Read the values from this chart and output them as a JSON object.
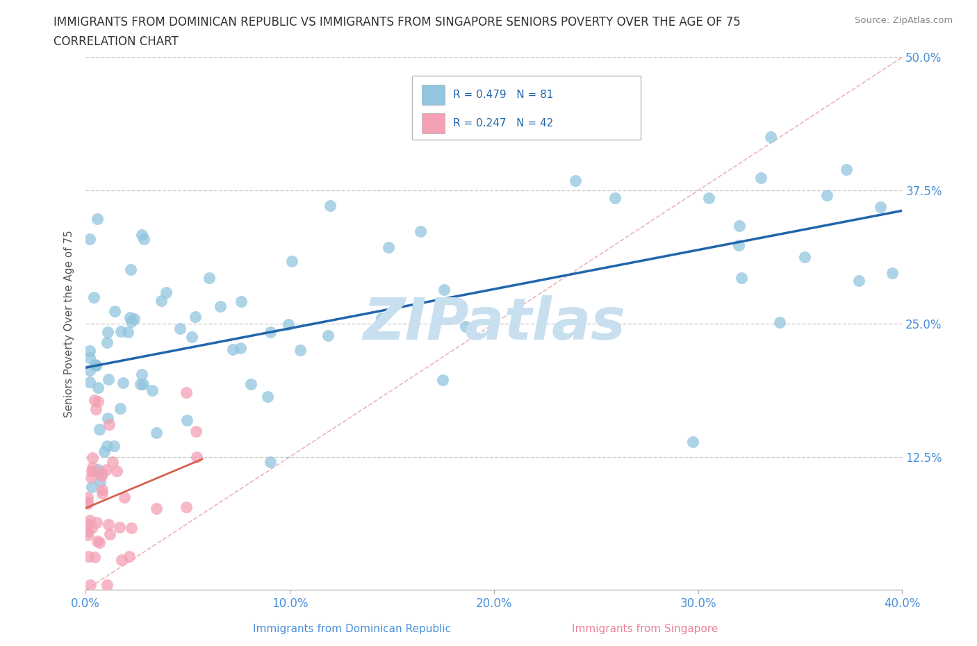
{
  "title_line1": "IMMIGRANTS FROM DOMINICAN REPUBLIC VS IMMIGRANTS FROM SINGAPORE SENIORS POVERTY OVER THE AGE OF 75",
  "title_line2": "CORRELATION CHART",
  "source_text": "Source: ZipAtlas.com",
  "ylabel": "Seniors Poverty Over the Age of 75",
  "xlim": [
    0.0,
    0.4
  ],
  "ylim": [
    0.0,
    0.5
  ],
  "xtick_vals": [
    0.0,
    0.1,
    0.2,
    0.3,
    0.4
  ],
  "xtick_labels": [
    "0.0%",
    "10.0%",
    "20.0%",
    "30.0%",
    "40.0%"
  ],
  "ytick_vals": [
    0.0,
    0.125,
    0.25,
    0.375,
    0.5
  ],
  "ytick_labels": [
    "",
    "12.5%",
    "25.0%",
    "37.5%",
    "50.0%"
  ],
  "legend_r1": "R = 0.479",
  "legend_n1": "N = 81",
  "legend_r2": "R = 0.247",
  "legend_n2": "N = 42",
  "color_blue": "#92c5de",
  "color_pink": "#f4a0b5",
  "color_blue_line": "#2166ac",
  "color_pink_line": "#d6604d",
  "color_ref_line": "#f4a0b5",
  "watermark": "ZIPatlas",
  "watermark_color": "#c8dff0",
  "legend_r_color": "#2166ac",
  "legend_n_color": "#333333",
  "tick_color": "#4a90d9",
  "ylabel_color": "#555555",
  "bottom_label1": "Immigrants from Dominican Republic",
  "bottom_label2": "Immigrants from Singapore",
  "bottom_color1": "#4a90d9",
  "bottom_color2": "#e8829a"
}
